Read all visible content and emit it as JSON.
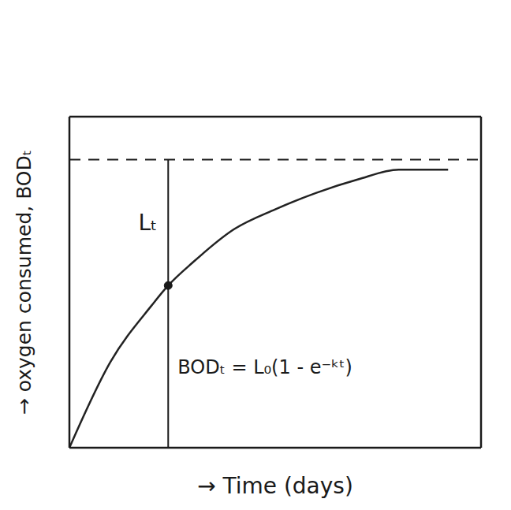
{
  "chart_data": {
    "type": "line",
    "x_label": "→ Time (days)",
    "y_label": "→ oxygen consumed, BODₜ",
    "x": [
      0,
      1,
      2,
      2.4,
      3,
      4,
      5,
      6,
      7,
      8,
      9.2
    ],
    "values": [
      0,
      2.6,
      4.3,
      4.9,
      5.6,
      6.6,
      7.2,
      7.7,
      8.1,
      8.4,
      8.4
    ],
    "color": "#222222",
    "xlim": [
      0,
      10
    ],
    "ylim": [
      0,
      10
    ],
    "xticks": [],
    "yticks": [],
    "tick_labels": false,
    "grid": false,
    "asymptote": 8.7,
    "time_marker": 2.4,
    "annotations": [
      {
        "text": "Lₜ"
      },
      {
        "text": "BODₜ = L₀(1 - e⁻ᵏᵗ)"
      }
    ]
  }
}
